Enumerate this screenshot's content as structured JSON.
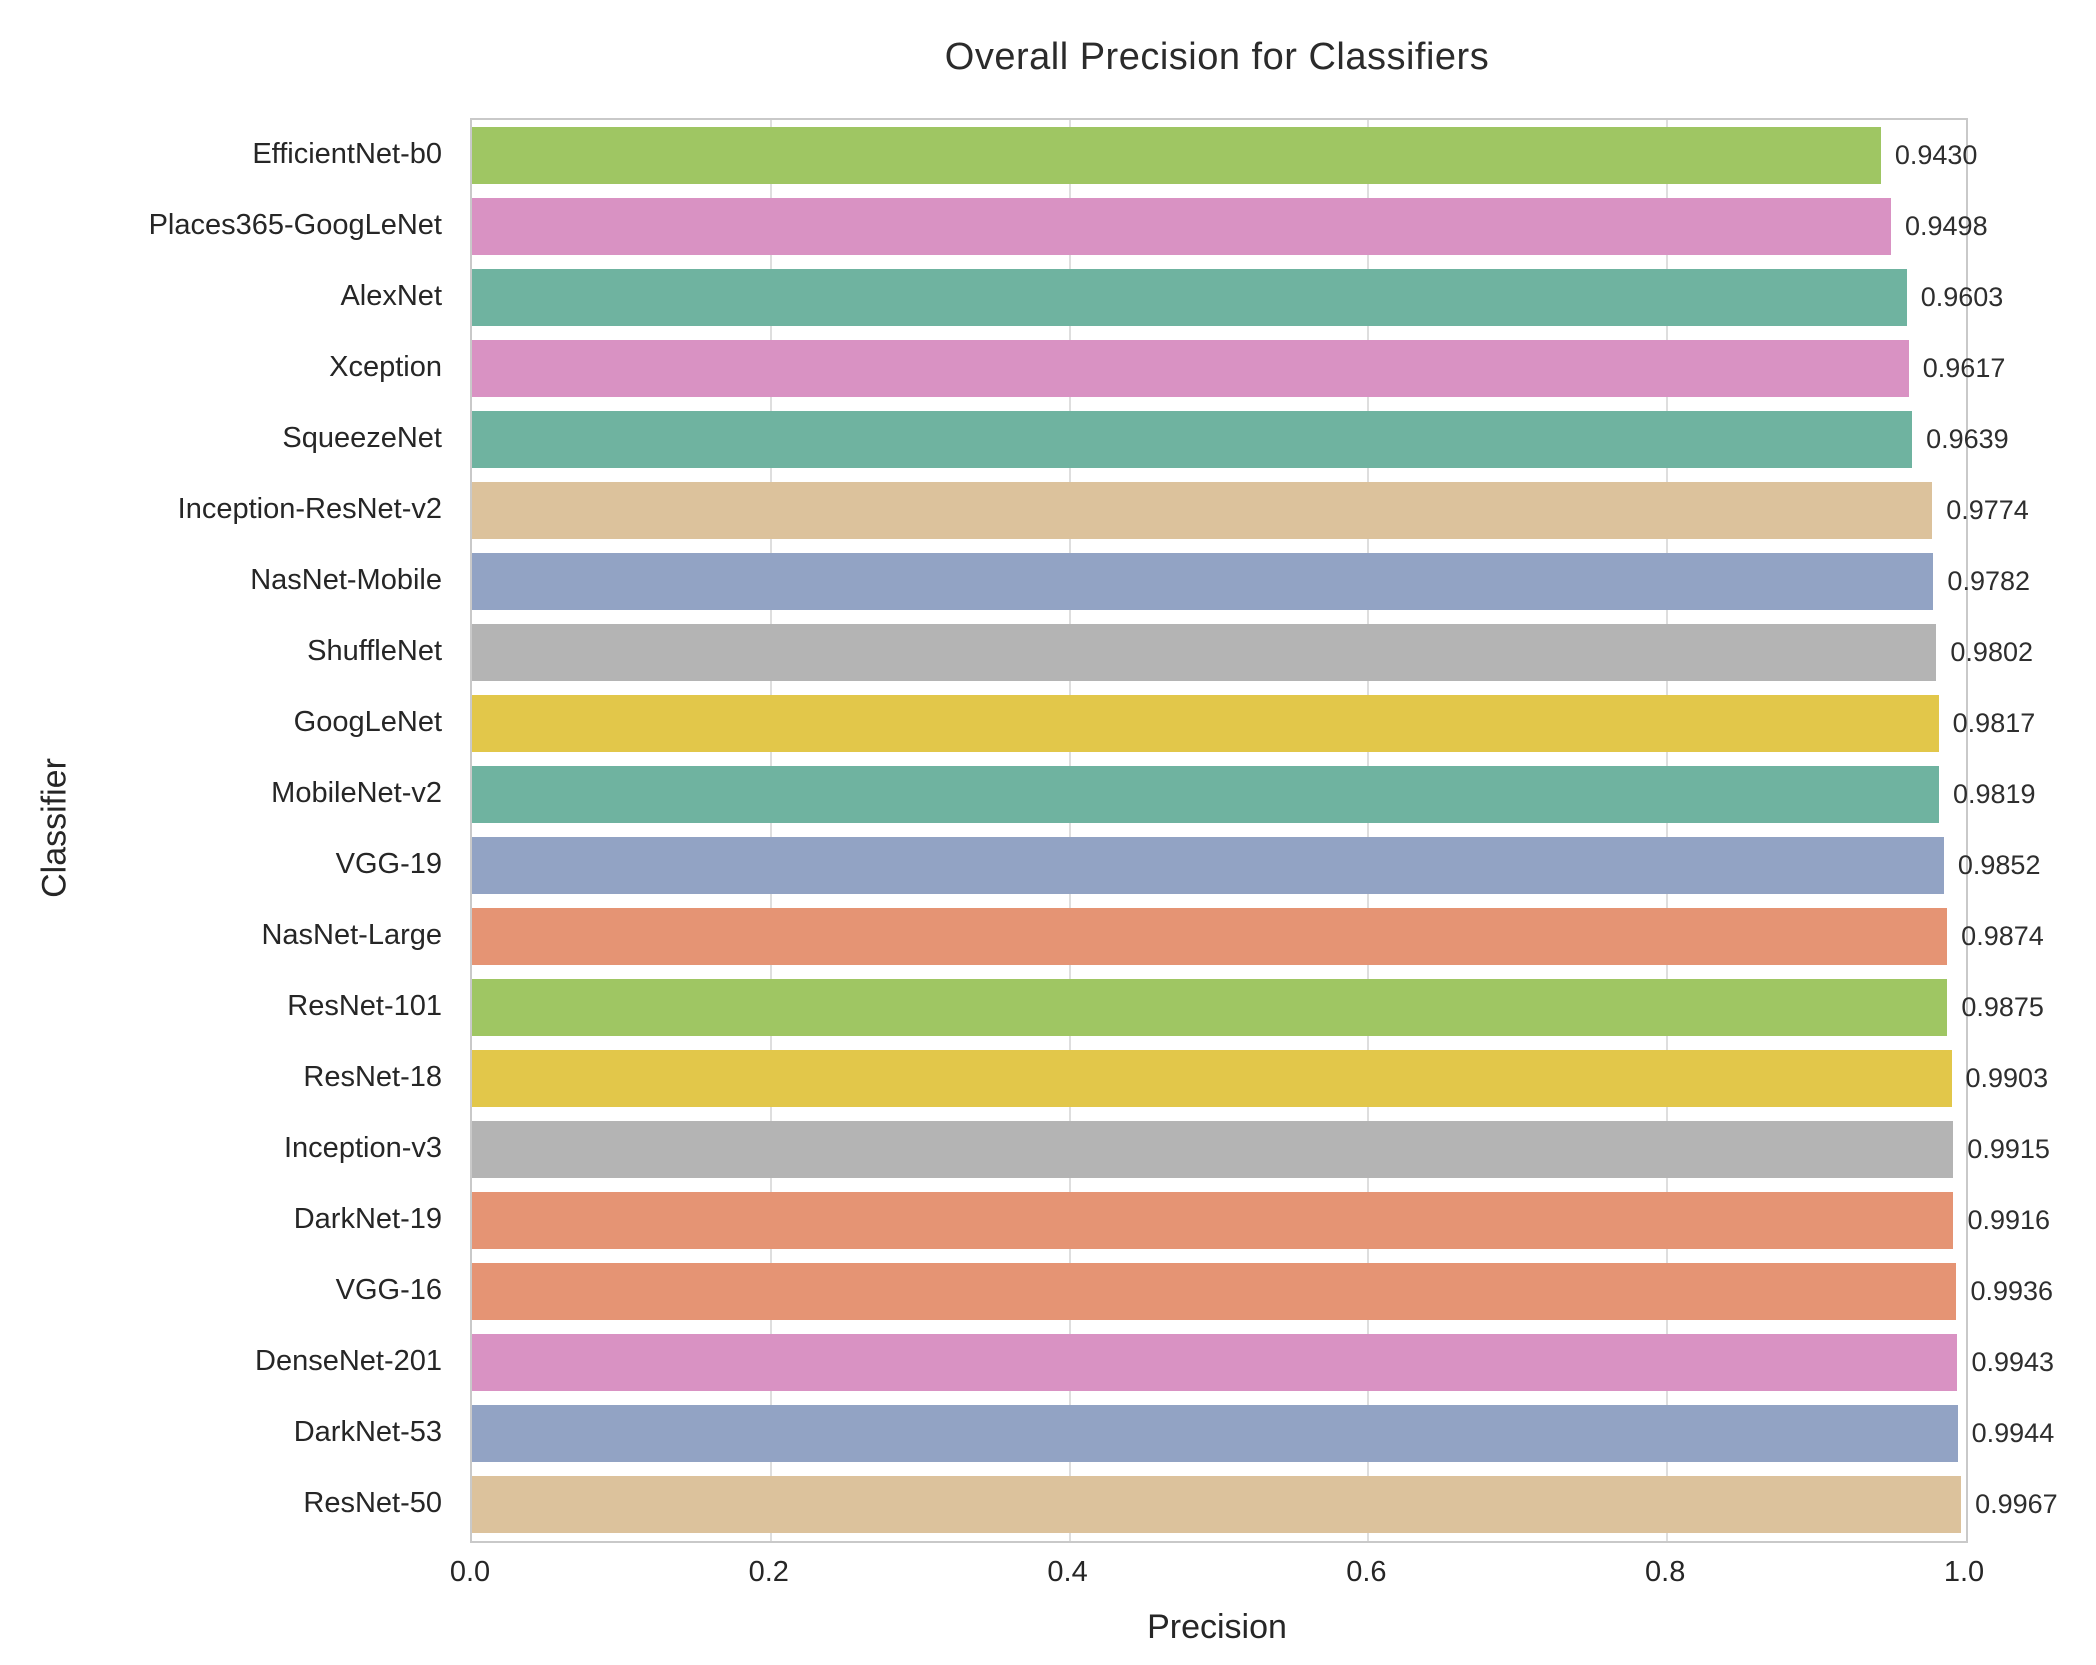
{
  "chart_data": {
    "type": "bar",
    "orientation": "horizontal",
    "title": "Overall Precision for Classifiers",
    "xlabel": "Precision",
    "ylabel": "Classifier",
    "xlim": [
      0.0,
      1.0
    ],
    "xtick_labels": [
      "0.0",
      "0.2",
      "0.4",
      "0.6",
      "0.8",
      "1.0"
    ],
    "xtick_values": [
      0.0,
      0.2,
      0.4,
      0.6,
      0.8,
      1.0
    ],
    "grid": "vertical-gridlines-behind-bars",
    "legend": "none",
    "categories": [
      "EfficientNet-b0",
      "Places365-GoogLeNet",
      "AlexNet",
      "Xception",
      "SqueezeNet",
      "Inception-ResNet-v2",
      "NasNet-Mobile",
      "ShuffleNet",
      "GoogLeNet",
      "MobileNet-v2",
      "VGG-19",
      "NasNet-Large",
      "ResNet-101",
      "ResNet-18",
      "Inception-v3",
      "DarkNet-19",
      "VGG-16",
      "DenseNet-201",
      "DarkNet-53",
      "ResNet-50"
    ],
    "values": [
      0.943,
      0.9498,
      0.9603,
      0.9617,
      0.9639,
      0.9774,
      0.9782,
      0.9802,
      0.9817,
      0.9819,
      0.9852,
      0.9874,
      0.9875,
      0.9903,
      0.9915,
      0.9916,
      0.9936,
      0.9943,
      0.9944,
      0.9967
    ],
    "value_labels": [
      "0.9430",
      "0.9498",
      "0.9603",
      "0.9617",
      "0.9639",
      "0.9774",
      "0.9782",
      "0.9802",
      "0.9817",
      "0.9819",
      "0.9852",
      "0.9874",
      "0.9875",
      "0.9903",
      "0.9915",
      "0.9916",
      "0.9936",
      "0.9943",
      "0.9944",
      "0.9967"
    ],
    "bar_colors": [
      "#9fc663",
      "#d992c3",
      "#6fb3a0",
      "#d992c3",
      "#6fb3a0",
      "#dcc29c",
      "#92a3c4",
      "#b4b4b4",
      "#e2c74a",
      "#6fb3a0",
      "#92a3c4",
      "#e59474",
      "#9fc663",
      "#e2c74a",
      "#b4b4b4",
      "#e59474",
      "#e59474",
      "#d992c3",
      "#92a3c4",
      "#dcc29c"
    ]
  },
  "style_colors": {
    "background": "#ffffff",
    "spine": "#c9c9c9",
    "gridline": "#dedede",
    "text": "#262626",
    "value_text": "#2e2e2e"
  }
}
